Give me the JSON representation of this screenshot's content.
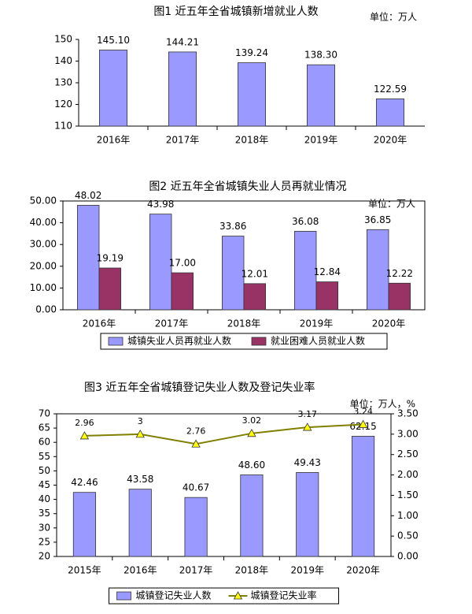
{
  "chart_data": [
    {
      "type": "bar",
      "title": "图1 近五年全省城镇新增就业人数",
      "unit": "单位：万人",
      "categories": [
        "2016年",
        "2017年",
        "2018年",
        "2019年",
        "2020年"
      ],
      "values": [
        145.1,
        144.21,
        139.24,
        138.3,
        122.59
      ],
      "value_labels": [
        "145.10",
        "144.21",
        "139.24",
        "138.30",
        "122.59"
      ],
      "color": "#9999ff",
      "ylim": [
        110,
        150
      ],
      "yticks": [
        110,
        120,
        130,
        140,
        150
      ]
    },
    {
      "type": "bar",
      "title": "图2 近五年全省城镇失业人员再就业情况",
      "unit": "单位：万人",
      "categories": [
        "2016年",
        "2017年",
        "2018年",
        "2019年",
        "2020年"
      ],
      "series": [
        {
          "name": "城镇失业人员再就业人数",
          "color": "#9999ff",
          "values": [
            48.02,
            43.98,
            33.86,
            36.08,
            36.85
          ],
          "value_labels": [
            "48.02",
            "43.98",
            "33.86",
            "36.08",
            "36.85"
          ]
        },
        {
          "name": "就业困难人员就业人数",
          "color": "#993366",
          "values": [
            19.19,
            17.0,
            12.01,
            12.84,
            12.22
          ],
          "value_labels": [
            "19.19",
            "17.00",
            "12.01",
            "12.84",
            "12.22"
          ]
        }
      ],
      "ylim": [
        0,
        50
      ],
      "yticks": [
        {
          "value": 0,
          "label": "0.00"
        },
        {
          "value": 10,
          "label": "10.00"
        },
        {
          "value": 20,
          "label": "20.00"
        },
        {
          "value": 30,
          "label": "30.00"
        },
        {
          "value": 40,
          "label": "40.00"
        },
        {
          "value": 50,
          "label": "50.00"
        }
      ],
      "legend": "bottom"
    },
    {
      "type": "combo",
      "title": "图3 近五年全省城镇登记失业人数及登记失业率",
      "unit": "单位：万人，%",
      "categories": [
        "2015年",
        "2016年",
        "2017年",
        "2018年",
        "2019年",
        "2020年"
      ],
      "series": [
        {
          "name": "城镇登记失业人数",
          "type": "bar",
          "color": "#9999ff",
          "values": [
            42.46,
            43.58,
            40.67,
            48.6,
            49.43,
            62.15
          ],
          "value_labels": [
            "42.46",
            "43.58",
            "40.67",
            "48.60",
            "49.43",
            "62.15"
          ]
        },
        {
          "name": "城镇登记失业率",
          "type": "line",
          "axis": "y2",
          "color": "#808000",
          "marker_color": "#ffff00",
          "values": [
            2.96,
            3,
            2.76,
            3.02,
            3.17,
            3.24
          ]
        }
      ],
      "ylim": [
        20,
        70
      ],
      "yticks": [
        20,
        25,
        30,
        35,
        40,
        45,
        50,
        55,
        60,
        65,
        70
      ],
      "y2lim": [
        0,
        3.5
      ],
      "y2ticks": [
        {
          "value": 0,
          "label": "0.00"
        },
        {
          "value": 0.5,
          "label": "0.50"
        },
        {
          "value": 1,
          "label": "1.00"
        },
        {
          "value": 1.5,
          "label": "1.50"
        },
        {
          "value": 2,
          "label": "2.00"
        },
        {
          "value": 2.5,
          "label": "2.50"
        },
        {
          "value": 3,
          "label": "3.00"
        },
        {
          "value": 3.5,
          "label": "3.50"
        }
      ],
      "legend": "bottom"
    }
  ]
}
